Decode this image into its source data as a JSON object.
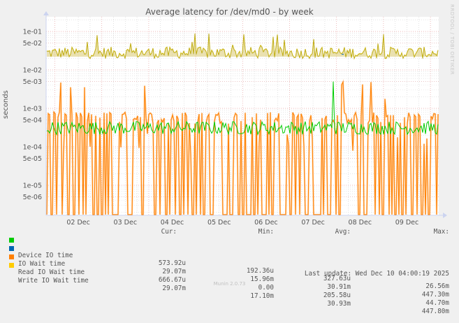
{
  "title": "Average latency for /dev/md0 - by week",
  "watermark": "RRDTOOL / TOBI OETIKER",
  "footer": "Munin 2.0.73",
  "colors": {
    "background": "#f0f0f0",
    "plot_bg": "#ffffff",
    "major_grid": "#e09090",
    "minor_grid": "#c8c8c8",
    "device_io": "#00cc00",
    "io_wait": "#0066b3",
    "read_io_wait": "#ff8000",
    "write_io_wait": "#ffcc00"
  },
  "legend": {
    "headers": {
      "cur": "Cur:",
      "min": "Min:",
      "avg": "Avg:",
      "max": "Max:"
    },
    "rows": [
      {
        "label": "Device IO time",
        "color": "#00cc00",
        "cur": "573.92u",
        "min": "192.36u",
        "avg": "327.63u",
        "max": "26.56m"
      },
      {
        "label": "IO Wait time",
        "color": "#0066b3",
        "cur": "29.07m",
        "min": "15.96m",
        "avg": "30.91m",
        "max": "447.30m"
      },
      {
        "label": "Read IO Wait time",
        "color": "#ff8000",
        "cur": "666.67u",
        "min": "0.00",
        "avg": "205.58u",
        "max": "44.70m"
      },
      {
        "label": "Write IO Wait time",
        "color": "#ffcc00",
        "cur": "29.07m",
        "min": "17.10m",
        "avg": "30.93m",
        "max": "447.80m"
      }
    ],
    "last_update": "Last update: Wed Dec 10 04:00:19 2025"
  },
  "chart_data": {
    "type": "line",
    "title": "Average latency for /dev/md0 - by week",
    "xlabel": "",
    "ylabel": "seconds",
    "yscale": "log",
    "ylim": [
      1.6e-06,
      0.25
    ],
    "y_ticks": [
      "1e-01",
      "5e-02",
      "1e-02",
      "5e-03",
      "1e-03",
      "5e-04",
      "1e-04",
      "5e-05",
      "1e-05",
      "5e-06"
    ],
    "y_tick_values": [
      0.1,
      0.05,
      0.01,
      0.005,
      0.001,
      0.0005,
      0.0001,
      5e-05,
      1e-05,
      5e-06
    ],
    "x_ticks": [
      "02 Dec",
      "03 Dec",
      "04 Dec",
      "05 Dec",
      "06 Dec",
      "07 Dec",
      "08 Dec",
      "09 Dec"
    ],
    "grid": true,
    "legend_position": "bottom",
    "series": [
      {
        "name": "Device IO time",
        "color": "#00cc00",
        "typical": 0.0003,
        "min": 0.00019236,
        "avg": 0.00032763,
        "max": 0.02656,
        "cur": 0.00057392
      },
      {
        "name": "IO Wait time",
        "color": "#0066b3",
        "typical": 0.029,
        "min": 0.01596,
        "avg": 0.03091,
        "max": 0.4473,
        "cur": 0.02907
      },
      {
        "name": "Read IO Wait time",
        "color": "#ff8000",
        "typical": 0.0003,
        "min": 0,
        "avg": 0.00020558,
        "max": 0.0447,
        "cur": 0.00066667
      },
      {
        "name": "Write IO Wait time",
        "color": "#ffcc00",
        "typical": 0.029,
        "min": 0.0171,
        "avg": 0.03093,
        "max": 0.4478,
        "cur": 0.02907
      }
    ]
  }
}
